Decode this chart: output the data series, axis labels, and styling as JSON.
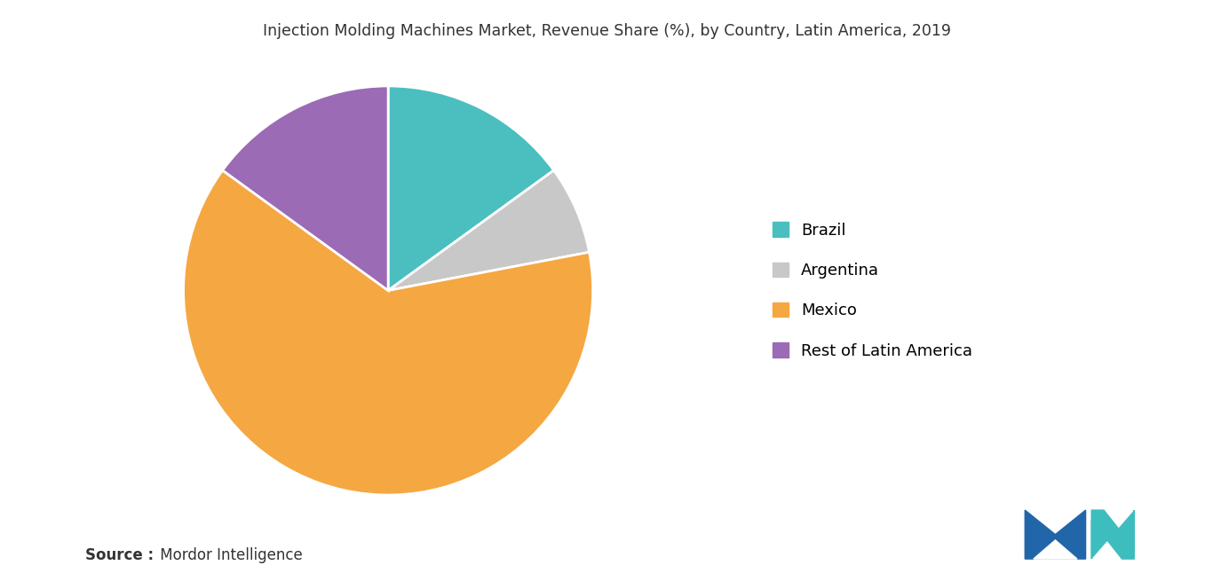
{
  "title": "Injection Molding Machines Market, Revenue Share (%), by Country, Latin America, 2019",
  "labels": [
    "Brazil",
    "Argentina",
    "Mexico",
    "Rest of Latin America"
  ],
  "values": [
    15,
    7,
    63,
    15
  ],
  "colors": [
    "#4bbfbf",
    "#c8c8c8",
    "#f5a742",
    "#9b6bb5"
  ],
  "legend_labels": [
    "Brazil",
    "Argentina",
    "Mexico",
    "Rest of Latin America"
  ],
  "source_bold": "Source :",
  "source_normal": " Mordor Intelligence",
  "background_color": "#ffffff",
  "title_fontsize": 12.5,
  "legend_fontsize": 13,
  "source_fontsize": 12,
  "startangle": 90
}
